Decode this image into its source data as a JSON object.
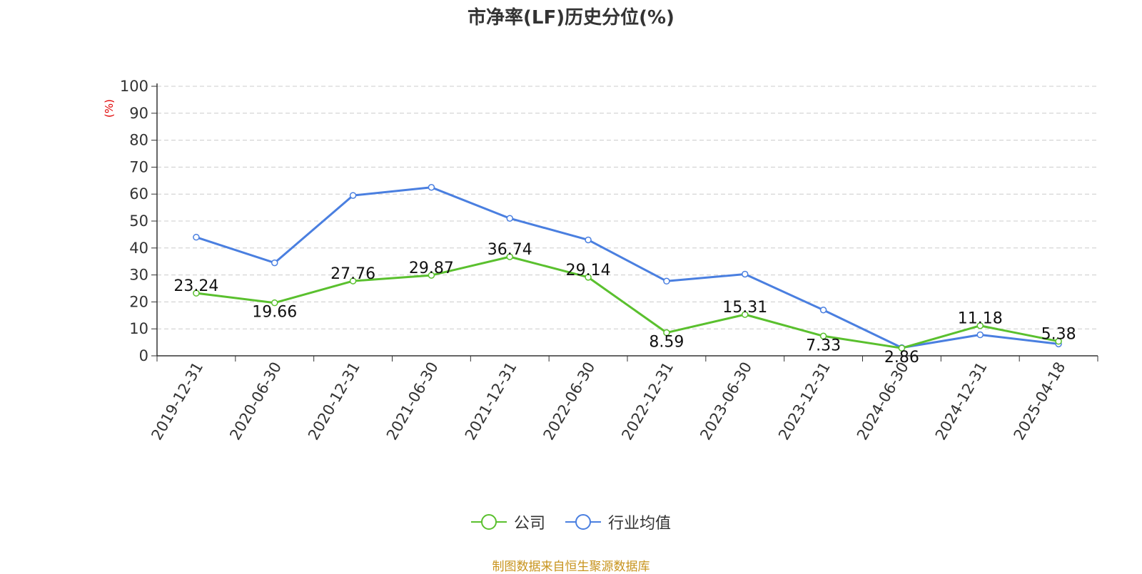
{
  "chart_data": {
    "type": "line",
    "title": "市净率(LF)历史分位(%)",
    "ylabel": "(%)",
    "ylim": [
      0,
      100
    ],
    "yticks": [
      0,
      10,
      20,
      30,
      40,
      50,
      60,
      70,
      80,
      90,
      100
    ],
    "grid": true,
    "legend_position": "bottom",
    "categories": [
      "2019-12-31",
      "2020-06-30",
      "2020-12-31",
      "2021-06-30",
      "2021-12-31",
      "2022-06-30",
      "2022-12-31",
      "2023-06-30",
      "2023-12-31",
      "2024-06-30",
      "2024-12-31",
      "2025-04-18"
    ],
    "series": [
      {
        "name": "公司",
        "color": "#5ac02e",
        "values": [
          23.24,
          19.66,
          27.76,
          29.87,
          36.74,
          29.14,
          8.59,
          15.31,
          7.33,
          2.86,
          11.18,
          5.38
        ],
        "labels": [
          "23.24",
          "19.66",
          "27.76",
          "29.87",
          "36.74",
          "29.14",
          "8.59",
          "15.31",
          "7.33",
          "2.86",
          "11.18",
          "5.38"
        ]
      },
      {
        "name": "行业均值",
        "color": "#4a7fe0",
        "values": [
          44.0,
          34.5,
          59.5,
          62.5,
          51.0,
          43.0,
          27.7,
          30.3,
          17.0,
          3.0,
          7.8,
          4.4
        ]
      }
    ],
    "source_note": "制图数据来自恒生聚源数据库"
  }
}
